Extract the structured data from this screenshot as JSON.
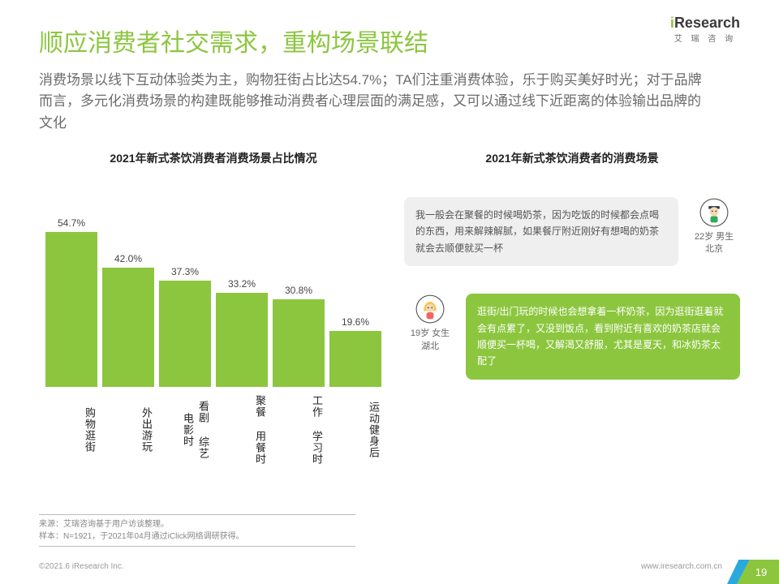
{
  "logo": {
    "brand_pre": "i",
    "brand": "Research",
    "sub": "艾 瑞 咨 询"
  },
  "title": "顺应消费者社交需求，重构场景联结",
  "subtitle": "消费场景以线下互动体验类为主，购物狂街占比达54.7%；TA们注重消费体验，乐于购买美好时光；对于品牌而言，多元化消费场景的构建既能够推动消费者心理层面的满足感，又可以通过线下近距离的体验输出品牌的文化",
  "chart": {
    "type": "bar",
    "title": "2021年新式茶饮消费者消费场景占比情况",
    "bar_color": "#8cc63f",
    "value_color": "#444444",
    "value_fontsize": 12,
    "label_fontsize": 13,
    "y_max_pct": 60,
    "categories": [
      "购物逛街",
      "外出游玩",
      "看剧 综艺 电影时",
      "聚餐 用餐时",
      "工作 学习时",
      "运动健身后"
    ],
    "values": [
      54.7,
      42.0,
      37.3,
      33.2,
      30.8,
      19.6
    ],
    "value_labels": [
      "54.7%",
      "42.0%",
      "37.3%",
      "33.2%",
      "30.8%",
      "19.6%"
    ]
  },
  "quotes": {
    "title": "2021年新式茶饮消费者的消费场景",
    "items": [
      {
        "text": "我一般会在聚餐的时候喝奶茶，因为吃饭的时候都会点喝的东西，用来解辣解腻，如果餐厅附近刚好有想喝的奶茶就会去顺便就买一杯",
        "persona": "22岁 男生\n北京",
        "style": "grey",
        "side": "right"
      },
      {
        "text": "逛街/出门玩的时候也会想拿着一杯奶茶，因为逛街逛着就会有点累了，又没到饭点，看到附近有喜欢的奶茶店就会顺便买一杯喝，又解渴又舒服，尤其是夏天，和冰奶茶太配了",
        "persona": "19岁 女生\n湖北",
        "style": "green",
        "side": "left"
      }
    ]
  },
  "source": {
    "line1": "来源：艾瑞咨询基于用户访谈整理。",
    "line2": "样本：N=1921，于2021年04月通过iClick网络调研获得。"
  },
  "footer": {
    "copyright": "©2021.6 iResearch Inc.",
    "url": "www.iresearch.com.cn",
    "page": "19"
  }
}
